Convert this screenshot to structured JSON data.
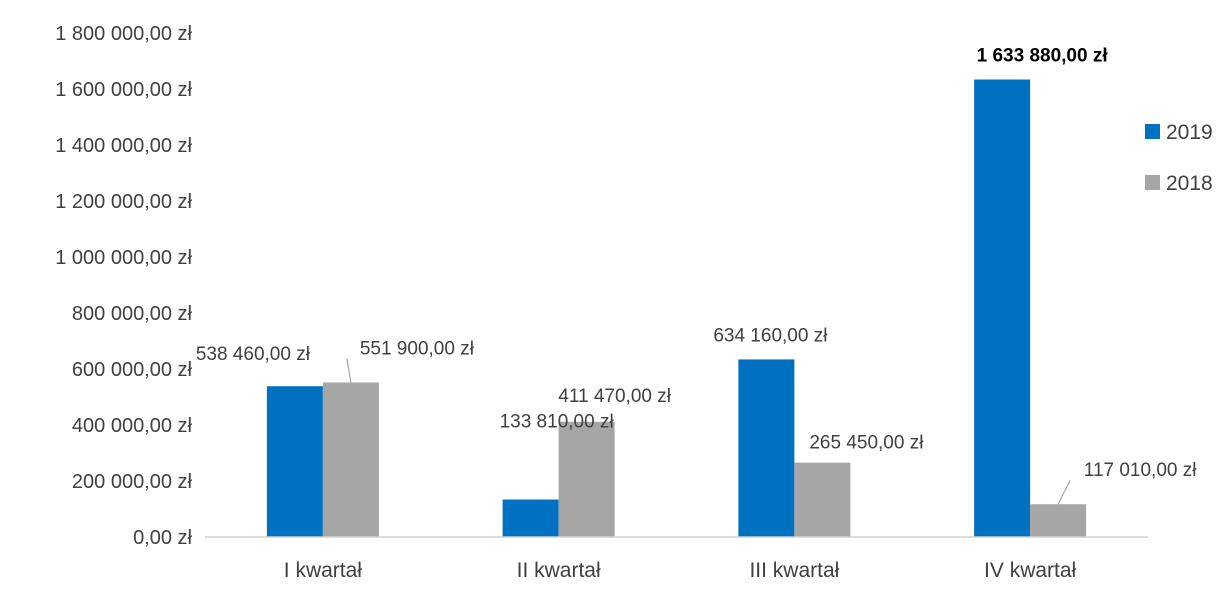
{
  "chart_data": {
    "type": "bar",
    "categories": [
      "I kwartał",
      "II kwartał",
      "III kwartał",
      "IV kwartał"
    ],
    "series": [
      {
        "name": "2019",
        "color": "#0070C0",
        "values": [
          538460,
          133810,
          634160,
          1633880
        ],
        "labels": [
          "538 460,00 zł",
          "133 810,00 zł",
          "634 160,00 zł",
          "1 633 880,00 zł"
        ]
      },
      {
        "name": "2018",
        "color": "#A6A6A6",
        "values": [
          551900,
          411470,
          265450,
          117010
        ],
        "labels": [
          "551 900,00 zł",
          "411 470,00 zł",
          "265 450,00 zł",
          "117 010,00 zł"
        ]
      }
    ],
    "yticks": [
      0,
      200000,
      400000,
      600000,
      800000,
      1000000,
      1200000,
      1400000,
      1600000,
      1800000
    ],
    "ytick_labels": [
      "0,00 zł",
      "200 000,00 zł",
      "400 000,00 zł",
      "600 000,00 zł",
      "800 000,00 zł",
      "1 000 000,00 zł",
      "1 200 000,00 zł",
      "1 400 000,00 zł",
      "1 600 000,00 zł",
      "1 800 000,00 zł"
    ],
    "ylim": [
      0,
      1800000
    ],
    "title": "",
    "xlabel": "",
    "ylabel": "",
    "grid": false,
    "legend_position": "right"
  }
}
